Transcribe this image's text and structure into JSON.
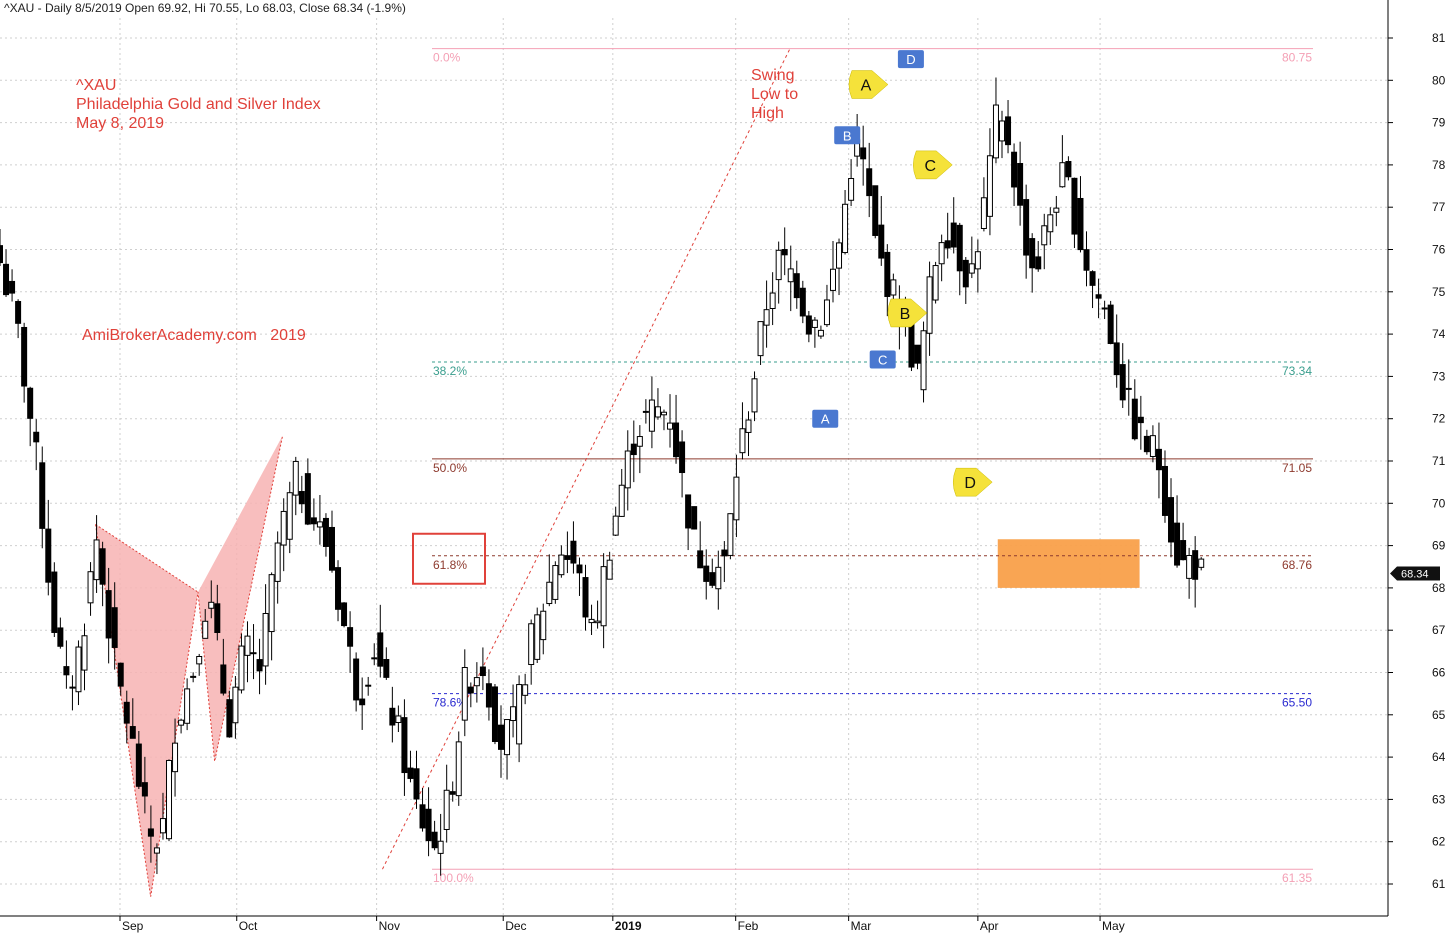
{
  "header": {
    "text": "^XAU - Daily 8/5/2019 Open 69.92, Hi 70.55, Lo 68.03, Close 68.34 (-1.9%)"
  },
  "annotations": {
    "title_lines": [
      "^XAU",
      "Philadelphia Gold and Silver Index",
      "May 8, 2019"
    ],
    "watermark": "AmiBrokerAcademy.com   2019",
    "swing_lines": [
      "Swing",
      "Low to",
      "High"
    ]
  },
  "colors": {
    "accent_red": "#e0413a",
    "fib_pink": "#f4a0b5",
    "fib_teal": "#3a9e8e",
    "fib_brown": "#8e3a2e",
    "fib_blue": "#2a2ad0",
    "zone_orange": "#f9a04a",
    "butterfly_fill": "#f7b3b3",
    "blue_marker": "#4a78d0",
    "yellow_marker": "#f5e23a",
    "last_price_bg": "#111111"
  },
  "chart_data": {
    "type": "candlestick",
    "symbol": "^XAU",
    "period": "Daily",
    "ylim": [
      60.3,
      81.7
    ],
    "y_ticks": [
      61,
      62,
      63,
      64,
      65,
      66,
      67,
      68,
      69,
      70,
      71,
      72,
      73,
      74,
      75,
      76,
      77,
      78,
      79,
      80,
      81
    ],
    "x_ticks": [
      {
        "label": "Sep",
        "bold": false,
        "t": 0.0923
      },
      {
        "label": "Oct",
        "bold": false,
        "t": 0.1821
      },
      {
        "label": "Nov",
        "bold": false,
        "t": 0.2897
      },
      {
        "label": "Dec",
        "bold": false,
        "t": 0.3871
      },
      {
        "label": "2019",
        "bold": true,
        "t": 0.4714
      },
      {
        "label": "Feb",
        "bold": false,
        "t": 0.5659
      },
      {
        "label": "Mar",
        "bold": false,
        "t": 0.6528
      },
      {
        "label": "Apr",
        "bold": false,
        "t": 0.7522
      },
      {
        "label": "May",
        "bold": false,
        "t": 0.8462
      }
    ],
    "last_price": "68.34",
    "fibonacci": {
      "levels": [
        {
          "pct": "0.0%",
          "value": 80.75,
          "label": "80.75",
          "color": "#f4a0b5",
          "style": "solid",
          "pct_boxed": false
        },
        {
          "pct": "38.2%",
          "value": 73.34,
          "label": "73.34",
          "color": "#3a9e8e",
          "style": "dashed",
          "pct_boxed": false
        },
        {
          "pct": "50.0%",
          "value": 71.05,
          "label": "71.05",
          "color": "#8e3a2e",
          "style": "solid",
          "pct_boxed": false
        },
        {
          "pct": "61.8%",
          "value": 68.76,
          "label": "68.76",
          "color": "#8e3a2e",
          "style": "dashed",
          "pct_boxed": true
        },
        {
          "pct": "78.6%",
          "value": 65.5,
          "label": "65.50",
          "color": "#2a2ad0",
          "style": "dashed",
          "pct_boxed": false
        },
        {
          "pct": "100.0%",
          "value": 61.35,
          "label": "61.35",
          "color": "#f4a0b5",
          "style": "solid",
          "pct_boxed": false
        }
      ],
      "swing_low": {
        "t": 0.2942,
        "value": 61.35
      },
      "swing_high": {
        "t": 0.6077,
        "value": 80.75
      }
    },
    "harmonic_butterfly": [
      {
        "t": 0.0735,
        "value": 69.5
      },
      {
        "t": 0.1159,
        "value": 60.7
      },
      {
        "t": 0.1523,
        "value": 67.9
      },
      {
        "t": 0.1651,
        "value": 63.9
      },
      {
        "t": 0.2174,
        "value": 71.6
      }
    ],
    "abcd_blue": [
      {
        "label": "A",
        "t": 0.6348,
        "value": 72.0
      },
      {
        "label": "B",
        "t": 0.6517,
        "value": 78.7
      },
      {
        "label": "C",
        "t": 0.679,
        "value": 73.4
      },
      {
        "label": "D",
        "t": 0.7007,
        "value": 80.5
      }
    ],
    "abcd_yellow": [
      {
        "label": "A",
        "t": 0.6661,
        "value": 79.9
      },
      {
        "label": "B",
        "t": 0.6961,
        "value": 74.5
      },
      {
        "label": "C",
        "t": 0.7156,
        "value": 78.0
      },
      {
        "label": "D",
        "t": 0.7463,
        "value": 70.5
      }
    ],
    "prz_zone": {
      "t_start": 0.7675,
      "t_end": 0.8766,
      "low": 68.0,
      "high": 69.15
    }
  }
}
